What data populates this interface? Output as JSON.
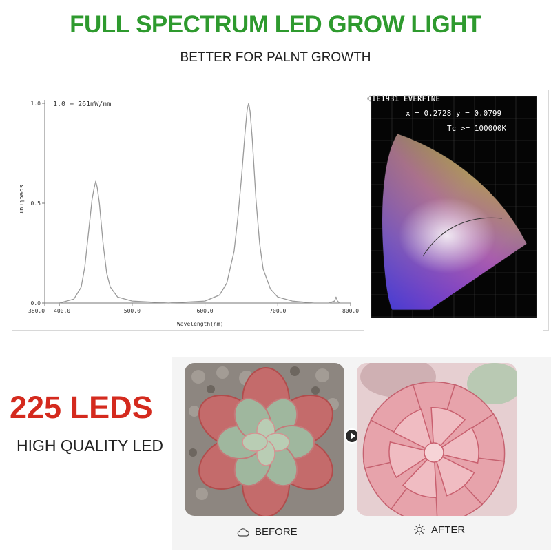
{
  "header": {
    "title": "FULL SPECTRUM LED GROW LIGHT",
    "title_color": "#2e9a2e",
    "subtitle": "BETTER FOR PALNT GROWTH"
  },
  "chart_data": {
    "type": "line",
    "title": "1.0 = 261mW/nm",
    "xlabel": "Wavelength(nm)",
    "ylabel": "spectrum",
    "xlim": [
      380,
      800
    ],
    "ylim": [
      0,
      1.0
    ],
    "x_tick_labels": [
      "380.0",
      "400.0",
      "500.0",
      "600.0",
      "700.0",
      "800.0"
    ],
    "y_tick_labels": [
      "0.0",
      "0.5",
      "1.0"
    ],
    "grid": false,
    "series": [
      {
        "color": "#9a9a9a",
        "x": [
          380,
          400,
          420,
          430,
          435,
          440,
          445,
          448,
          450,
          452,
          455,
          460,
          465,
          470,
          480,
          500,
          550,
          600,
          620,
          630,
          640,
          645,
          650,
          655,
          658,
          660,
          662,
          665,
          670,
          675,
          680,
          690,
          700,
          720,
          750,
          770,
          778,
          780,
          782,
          785,
          790,
          800
        ],
        "y": [
          0.0,
          0.0,
          0.02,
          0.08,
          0.18,
          0.35,
          0.52,
          0.58,
          0.61,
          0.58,
          0.5,
          0.3,
          0.15,
          0.08,
          0.03,
          0.01,
          0.0,
          0.01,
          0.04,
          0.1,
          0.26,
          0.42,
          0.62,
          0.85,
          0.97,
          1.0,
          0.96,
          0.82,
          0.52,
          0.3,
          0.17,
          0.07,
          0.03,
          0.01,
          0.0,
          0.0,
          0.01,
          0.03,
          0.01,
          0.0,
          0.0,
          0.0
        ]
      }
    ]
  },
  "cie": {
    "title": "CIE1931 EVERFINE",
    "coords": "x = 0.2728 y = 0.0799",
    "tc": "Tc >= 100000K"
  },
  "promo": {
    "leds": "225 LEDS",
    "leds_color": "#d42a1e",
    "quality": "HIGH QUALITY LED"
  },
  "compare": {
    "before_label": "BEFORE",
    "before_icon": "cloud-icon",
    "after_label": "AFTER",
    "after_icon": "sun-icon",
    "arrow_icon": "arrow-right-icon"
  }
}
